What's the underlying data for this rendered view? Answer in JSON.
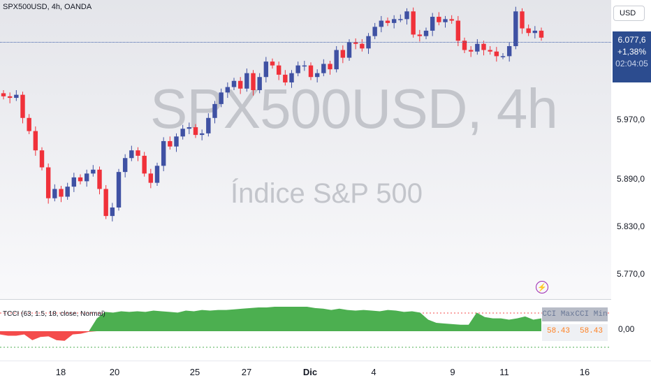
{
  "header": {
    "symbol_title": "SPX500USD, 4h, OANDA"
  },
  "watermark": {
    "symbol": "SPX500USD, 4h",
    "description": "Índice S&P 500"
  },
  "toolbar": {
    "currency": "USD"
  },
  "price_tag": {
    "price": "6.077,6",
    "change": "+1,38%",
    "countdown": "02:04:05"
  },
  "price_axis": {
    "labels": [
      "5.970,0",
      "5.890,0",
      "5.830,0",
      "5.770,0"
    ]
  },
  "indicator": {
    "title": "TCCI (63, 1.5, 18, close, Normal)",
    "axis_label": "0,00",
    "table": {
      "headers": [
        "CCI Max",
        "CCI Min"
      ],
      "values": [
        "58.43",
        "58.43"
      ]
    }
  },
  "time_axis": {
    "labels": [
      "18",
      "20",
      "25",
      "27",
      "Dic",
      "4",
      "9",
      "11",
      "16"
    ]
  },
  "colors": {
    "up": "#3f51a3",
    "down": "#f0313a",
    "osc_pos": "#4caf50",
    "osc_neg": "#f44b4b",
    "price_tag": "#2c4c8f"
  },
  "chart_data": {
    "type": "candlestick",
    "y_axis_ticks": [
      5770,
      5830,
      5890,
      5970
    ],
    "candles_close": [
      6000,
      5998,
      6002,
      5972,
      5955,
      5930,
      5908,
      5868,
      5880,
      5870,
      5883,
      5895,
      5890,
      5900,
      5905,
      5880,
      5845,
      5856,
      5902,
      5920,
      5930,
      5923,
      5900,
      5888,
      5910,
      5942,
      5935,
      5948,
      5958,
      5960,
      5950,
      5952,
      5972,
      5990,
      6005,
      6012,
      6020,
      6010,
      6030,
      6008,
      6025,
      6045,
      6040,
      6028,
      6018,
      6030,
      6040,
      6040,
      6025,
      6030,
      6042,
      6035,
      6060,
      6050,
      6070,
      6068,
      6062,
      6078,
      6090,
      6098,
      6095,
      6100,
      6100,
      6110,
      6080,
      6078,
      6085,
      6103,
      6096,
      6100,
      6098,
      6072,
      6060,
      6058,
      6068,
      6060,
      6058,
      6052,
      6052,
      6065,
      6110,
      6088,
      6082,
      6085,
      6076
    ],
    "oscillator": [
      -10,
      -14,
      -14,
      -10,
      -28,
      -18,
      -16,
      -28,
      -30,
      -10,
      -8,
      -2,
      40,
      60,
      58,
      62,
      60,
      62,
      60,
      64,
      62,
      60,
      58,
      64,
      62,
      66,
      64,
      66,
      66,
      68,
      70,
      72,
      74,
      74,
      76,
      76,
      76,
      76,
      76,
      72,
      70,
      66,
      70,
      66,
      64,
      66,
      64,
      62,
      66,
      64,
      60,
      62,
      58,
      36,
      26,
      24,
      22,
      20,
      20,
      58,
      44,
      40,
      40,
      36,
      40,
      46,
      36,
      40
    ]
  }
}
